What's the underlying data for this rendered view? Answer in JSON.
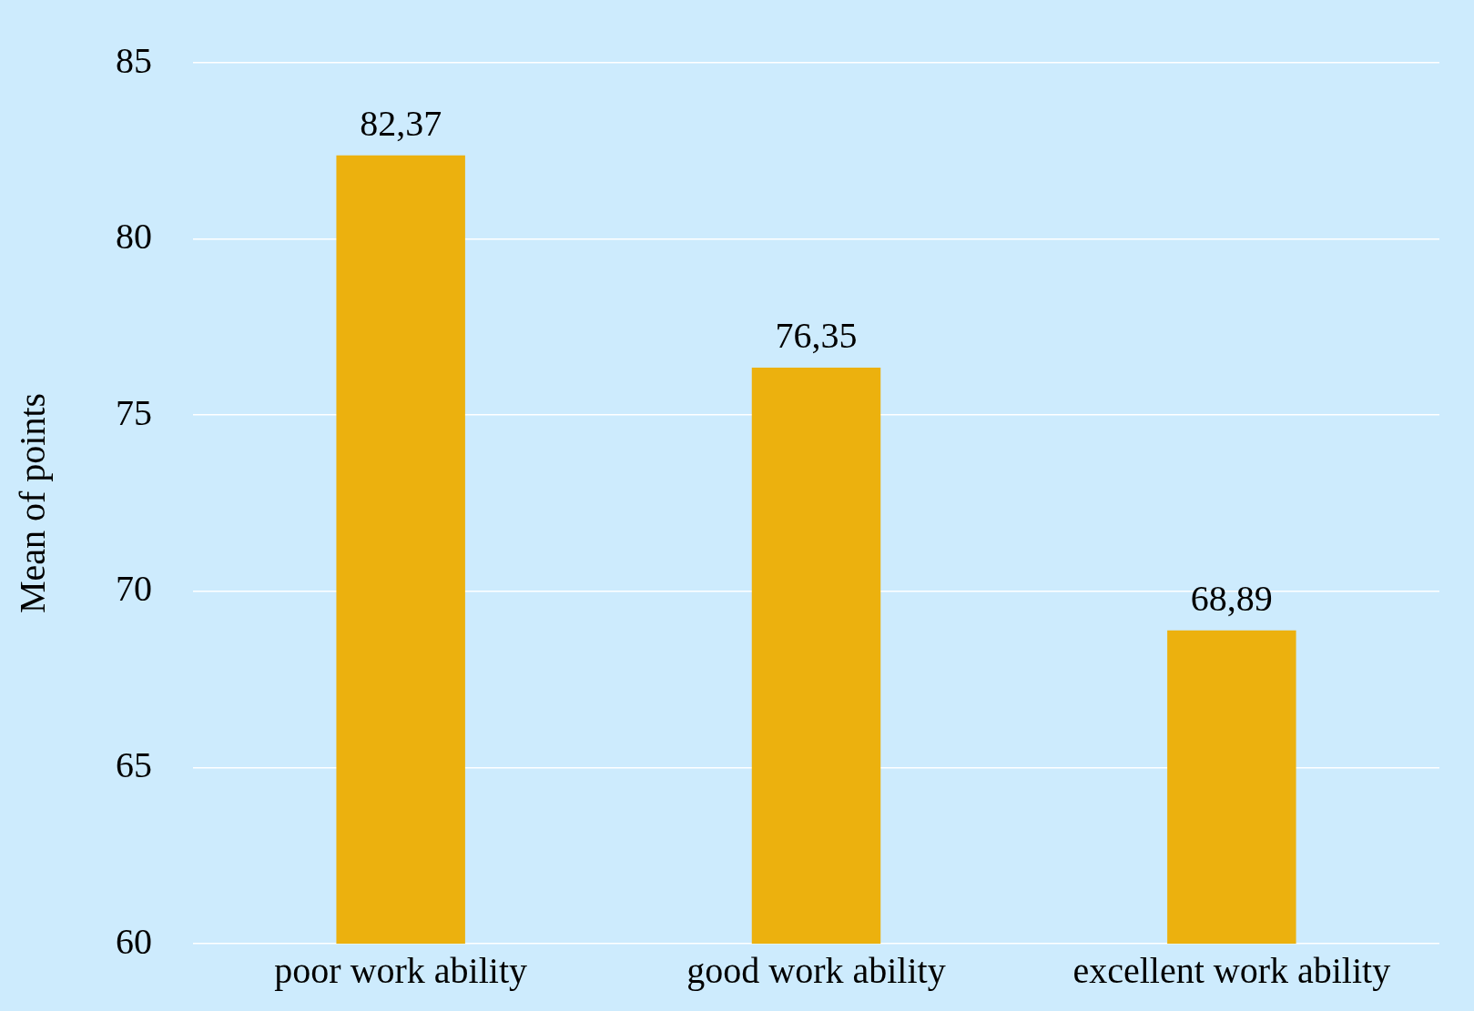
{
  "chart_data": {
    "type": "bar",
    "ylabel": "Mean of points",
    "categories": [
      "poor work ability",
      "good work ability",
      "excellent work ability"
    ],
    "values": [
      82.37,
      76.35,
      68.89
    ],
    "value_labels": [
      "82,37",
      "76,35",
      "68,89"
    ],
    "color": "#ecb10e",
    "ylim": [
      60,
      85
    ],
    "yticks": [
      60,
      65,
      70,
      75,
      80,
      85
    ],
    "grid": "y",
    "legend": false
  }
}
